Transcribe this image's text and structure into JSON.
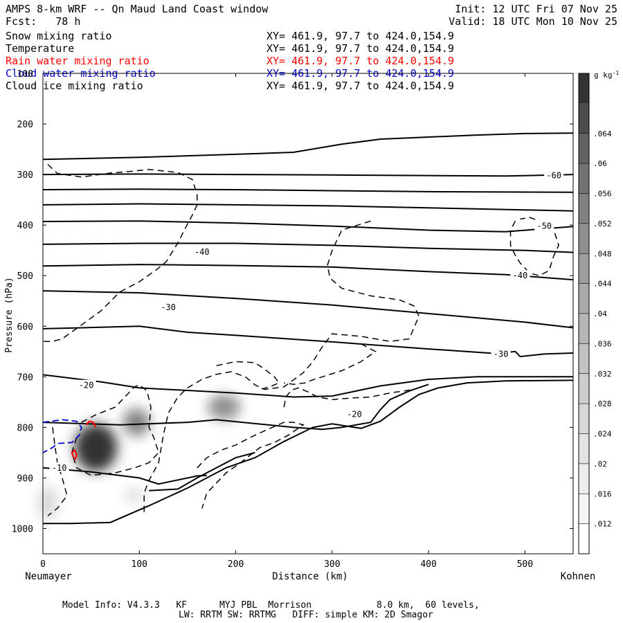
{
  "header": {
    "title": "AMPS 8-km WRF -- Qn Maud Land Coast window",
    "forecast": "Fcst:   78 h",
    "init": "Init: 12 UTC Fri 07 Nov 25",
    "valid": "Valid: 18 UTC Mon 10 Nov 25"
  },
  "fields": [
    {
      "label": "Snow mixing ratio",
      "xy": "XY= 461.9, 97.7 to 424.0,154.9",
      "color": "#000000"
    },
    {
      "label": "Temperature",
      "xy": "XY= 461.9, 97.7 to 424.0,154.9",
      "color": "#000000"
    },
    {
      "label": "Rain water mixing ratio",
      "xy": "XY= 461.9, 97.7 to 424.0,154.9",
      "color": "#ff0000"
    },
    {
      "label": "Cloud water mixing ratio",
      "xy": "XY= 461.9, 97.7 to 424.0,154.9",
      "color": "#0000cc"
    },
    {
      "label": "Cloud ice mixing ratio",
      "xy": "XY= 461.9, 97.7 to 424.0,154.9",
      "color": "#000000"
    }
  ],
  "footer": {
    "line1": "Model Info: V4.3.3   KF      MYJ PBL  Morrison            8.0 km,  60 levels,",
    "line2": "LW: RRTM SW: RRTMG   DIFF: simple KM: 2D Smagor"
  },
  "chart_data": {
    "type": "contour",
    "xlabel": "Distance (km)",
    "ylabel": "Pressure (hPa)",
    "xlim": [
      0,
      550
    ],
    "ylim": [
      1050,
      100
    ],
    "x_ticks": [
      0,
      100,
      200,
      300,
      400,
      500
    ],
    "y_ticks": [
      100,
      200,
      300,
      400,
      500,
      600,
      700,
      800,
      900,
      1000
    ],
    "left_endpoint": "Neumayer",
    "right_endpoint": "Kohnen",
    "colorbar": {
      "unit": "g kg",
      "unit_exponent": "-1",
      "levels": [
        ".012",
        ".016",
        ".02",
        ".024",
        ".028",
        ".032",
        ".036",
        ".04",
        ".044",
        ".048",
        ".052",
        ".056",
        ".06",
        ".064"
      ],
      "colors": [
        "#ffffff",
        "#f5f5f5",
        "#ececec",
        "#e2e2e2",
        "#d8d8d8",
        "#cdcdcd",
        "#c2c2c2",
        "#b6b6b6",
        "#aaaaaa",
        "#9d9d9d",
        "#8f8f8f",
        "#818181",
        "#727272",
        "#626262",
        "#4c4c4c",
        "#333333"
      ]
    },
    "temperature_labels": [
      {
        "text": "-60",
        "x": 530,
        "p": 302
      },
      {
        "text": "-50",
        "x": 520,
        "p": 402
      },
      {
        "text": "-40",
        "x": 165,
        "p": 453
      },
      {
        "text": "-40",
        "x": 495,
        "p": 500
      },
      {
        "text": "-30",
        "x": 130,
        "p": 563
      },
      {
        "text": "-30",
        "x": 475,
        "p": 655
      },
      {
        "text": "-20",
        "x": 45,
        "p": 717
      },
      {
        "text": "-20",
        "x": 323,
        "p": 774
      },
      {
        "text": "-10",
        "x": 17,
        "p": 880
      }
    ],
    "temperature_isotherms": [
      [
        [
          0,
          270
        ],
        [
          100,
          266
        ],
        [
          200,
          260
        ],
        [
          260,
          256
        ],
        [
          310,
          240
        ],
        [
          350,
          230
        ],
        [
          400,
          226
        ],
        [
          450,
          222
        ],
        [
          500,
          219
        ],
        [
          550,
          218
        ]
      ],
      [
        [
          0,
          300
        ],
        [
          100,
          299
        ],
        [
          200,
          300
        ],
        [
          300,
          301
        ],
        [
          400,
          302
        ],
        [
          480,
          303
        ],
        [
          550,
          300
        ]
      ],
      [
        [
          0,
          330
        ],
        [
          100,
          329
        ],
        [
          200,
          330
        ],
        [
          300,
          332
        ],
        [
          400,
          334
        ],
        [
          550,
          335
        ]
      ],
      [
        [
          0,
          360
        ],
        [
          100,
          358
        ],
        [
          200,
          360
        ],
        [
          300,
          362
        ],
        [
          400,
          366
        ],
        [
          550,
          372
        ]
      ],
      [
        [
          0,
          393
        ],
        [
          100,
          392
        ],
        [
          200,
          396
        ],
        [
          300,
          402
        ],
        [
          400,
          410
        ],
        [
          480,
          413
        ],
        [
          550,
          403
        ]
      ],
      [
        [
          0,
          438
        ],
        [
          100,
          436
        ],
        [
          200,
          436
        ],
        [
          300,
          440
        ],
        [
          400,
          446
        ],
        [
          500,
          450
        ],
        [
          550,
          454
        ]
      ],
      [
        [
          0,
          481
        ],
        [
          100,
          478
        ],
        [
          200,
          480
        ],
        [
          300,
          483
        ],
        [
          400,
          492
        ],
        [
          480,
          498
        ],
        [
          550,
          508
        ]
      ],
      [
        [
          0,
          530
        ],
        [
          100,
          534
        ],
        [
          200,
          545
        ],
        [
          300,
          558
        ],
        [
          400,
          575
        ],
        [
          500,
          592
        ],
        [
          550,
          603
        ]
      ],
      [
        [
          0,
          605
        ],
        [
          100,
          600
        ],
        [
          150,
          612
        ],
        [
          200,
          618
        ],
        [
          300,
          631
        ],
        [
          400,
          645
        ],
        [
          470,
          654
        ],
        [
          490,
          650
        ],
        [
          495,
          660
        ],
        [
          520,
          655
        ],
        [
          550,
          653
        ]
      ],
      [
        [
          0,
          696
        ],
        [
          60,
          710
        ],
        [
          100,
          722
        ],
        [
          200,
          732
        ],
        [
          260,
          740
        ],
        [
          300,
          738
        ],
        [
          350,
          718
        ],
        [
          400,
          705
        ],
        [
          450,
          700
        ],
        [
          550,
          700
        ]
      ],
      [
        [
          0,
          790
        ],
        [
          80,
          795
        ],
        [
          150,
          790
        ],
        [
          180,
          785
        ],
        [
          260,
          800
        ],
        [
          290,
          804
        ],
        [
          310,
          800
        ],
        [
          340,
          790
        ],
        [
          350,
          765
        ],
        [
          360,
          745
        ],
        [
          380,
          728
        ],
        [
          400,
          715
        ]
      ],
      [
        [
          0,
          880
        ],
        [
          50,
          888
        ],
        [
          100,
          900
        ],
        [
          120,
          912
        ],
        [
          160,
          896
        ],
        [
          170,
          895
        ]
      ],
      [
        [
          110,
          925
        ],
        [
          140,
          922
        ],
        [
          160,
          900
        ],
        [
          180,
          880
        ],
        [
          200,
          860
        ],
        [
          220,
          850
        ]
      ]
    ],
    "terrain": [
      [
        0,
        990
      ],
      [
        30,
        990
      ],
      [
        70,
        988
      ],
      [
        110,
        955
      ],
      [
        150,
        920
      ],
      [
        190,
        880
      ],
      [
        220,
        860
      ],
      [
        250,
        828
      ],
      [
        280,
        800
      ],
      [
        300,
        793
      ],
      [
        330,
        802
      ],
      [
        350,
        788
      ],
      [
        370,
        760
      ],
      [
        390,
        735
      ],
      [
        410,
        722
      ],
      [
        440,
        712
      ],
      [
        480,
        708
      ],
      [
        550,
        707
      ]
    ],
    "snow_blobs": [
      {
        "x": 55,
        "p": 840,
        "rx": 22,
        "rp": 95,
        "level": 0.068
      },
      {
        "x": 97,
        "p": 790,
        "rx": 14,
        "rp": 55,
        "level": 0.05
      },
      {
        "x": 188,
        "p": 760,
        "rx": 17,
        "rp": 50,
        "level": 0.045
      },
      {
        "x": 5,
        "p": 950,
        "rx": 10,
        "rp": 70,
        "level": 0.02
      },
      {
        "x": 95,
        "p": 935,
        "rx": 10,
        "rp": 25,
        "level": 0.02
      }
    ],
    "cloud_ice_contours": [
      [
        [
          5,
          280
        ],
        [
          15,
          298
        ],
        [
          40,
          305
        ],
        [
          70,
          297
        ],
        [
          90,
          294
        ],
        [
          110,
          290
        ],
        [
          140,
          296
        ],
        [
          155,
          310
        ],
        [
          160,
          340
        ],
        [
          160,
          360
        ],
        [
          155,
          380
        ],
        [
          148,
          405
        ],
        [
          140,
          435
        ],
        [
          128,
          472
        ],
        [
          118,
          488
        ],
        [
          100,
          512
        ],
        [
          80,
          532
        ],
        [
          60,
          570
        ],
        [
          20,
          625
        ],
        [
          10,
          630
        ],
        [
          0,
          630
        ]
      ],
      [
        [
          340,
          392
        ],
        [
          310,
          410
        ],
        [
          300,
          450
        ],
        [
          295,
          480
        ],
        [
          298,
          505
        ],
        [
          310,
          525
        ],
        [
          340,
          540
        ],
        [
          370,
          548
        ],
        [
          385,
          560
        ],
        [
          390,
          580
        ],
        [
          380,
          625
        ],
        [
          360,
          630
        ],
        [
          330,
          620
        ],
        [
          300,
          615
        ],
        [
          290,
          640
        ],
        [
          280,
          670
        ],
        [
          270,
          692
        ],
        [
          250,
          720
        ],
        [
          230,
          725
        ],
        [
          220,
          716
        ],
        [
          210,
          700
        ],
        [
          195,
          690
        ],
        [
          180,
          695
        ],
        [
          165,
          705
        ],
        [
          150,
          722
        ],
        [
          140,
          740
        ],
        [
          130,
          772
        ],
        [
          125,
          815
        ],
        [
          120,
          870
        ],
        [
          110,
          905
        ],
        [
          105,
          930
        ],
        [
          105,
          970
        ]
      ],
      [
        [
          490,
          392
        ],
        [
          485,
          410
        ],
        [
          485,
          440
        ],
        [
          490,
          460
        ],
        [
          495,
          475
        ],
        [
          505,
          495
        ],
        [
          515,
          500
        ],
        [
          525,
          490
        ],
        [
          530,
          460
        ],
        [
          535,
          440
        ],
        [
          530,
          410
        ],
        [
          520,
          395
        ],
        [
          505,
          385
        ],
        [
          495,
          388
        ]
      ],
      [
        [
          10,
          800
        ],
        [
          12,
          830
        ],
        [
          15,
          870
        ],
        [
          20,
          900
        ],
        [
          25,
          935
        ],
        [
          15,
          960
        ],
        [
          5,
          975
        ]
      ],
      [
        [
          40,
          790
        ],
        [
          55,
          775
        ],
        [
          75,
          760
        ],
        [
          85,
          740
        ],
        [
          95,
          720
        ],
        [
          100,
          716
        ],
        [
          108,
          728
        ],
        [
          112,
          760
        ],
        [
          110,
          800
        ],
        [
          115,
          820
        ],
        [
          120,
          850
        ],
        [
          110,
          870
        ],
        [
          95,
          880
        ],
        [
          75,
          890
        ],
        [
          50,
          895
        ],
        [
          35,
          880
        ],
        [
          30,
          850
        ],
        [
          35,
          820
        ]
      ],
      [
        [
          160,
          880
        ],
        [
          170,
          860
        ],
        [
          185,
          845
        ],
        [
          200,
          835
        ],
        [
          215,
          820
        ],
        [
          232,
          805
        ],
        [
          250,
          790
        ],
        [
          260,
          790
        ],
        [
          270,
          795
        ],
        [
          255,
          815
        ],
        [
          240,
          830
        ],
        [
          225,
          840
        ],
        [
          215,
          855
        ],
        [
          205,
          870
        ],
        [
          190,
          890
        ],
        [
          180,
          910
        ],
        [
          170,
          930
        ],
        [
          165,
          960
        ]
      ],
      [
        [
          250,
          760
        ],
        [
          252,
          740
        ],
        [
          258,
          726
        ],
        [
          265,
          722
        ],
        [
          275,
          730
        ],
        [
          285,
          740
        ],
        [
          300,
          745
        ],
        [
          320,
          742
        ],
        [
          340,
          740
        ],
        [
          360,
          732
        ],
        [
          385,
          725
        ]
      ],
      [
        [
          330,
          635
        ],
        [
          345,
          650
        ],
        [
          330,
          670
        ],
        [
          310,
          688
        ],
        [
          290,
          700
        ],
        [
          280,
          706
        ],
        [
          272,
          712
        ],
        [
          260,
          715
        ],
        [
          250,
          712
        ]
      ],
      [
        [
          180,
          678
        ],
        [
          200,
          670
        ],
        [
          220,
          672
        ],
        [
          230,
          685
        ],
        [
          240,
          700
        ],
        [
          245,
          712
        ],
        [
          235,
          720
        ],
        [
          225,
          725
        ]
      ]
    ],
    "cloud_water_contours": [
      [
        [
          0,
          790
        ],
        [
          20,
          785
        ],
        [
          35,
          788
        ],
        [
          40,
          800
        ],
        [
          38,
          815
        ],
        [
          30,
          830
        ],
        [
          15,
          832
        ],
        [
          10,
          840
        ],
        [
          0,
          850
        ]
      ]
    ],
    "rain_contours": [
      [
        [
          45,
          795
        ],
        [
          48,
          788
        ],
        [
          52,
          790
        ],
        [
          55,
          800
        ]
      ],
      [
        [
          32,
          860
        ],
        [
          30,
          850
        ],
        [
          33,
          845
        ],
        [
          35,
          855
        ],
        [
          33,
          865
        ]
      ]
    ]
  }
}
